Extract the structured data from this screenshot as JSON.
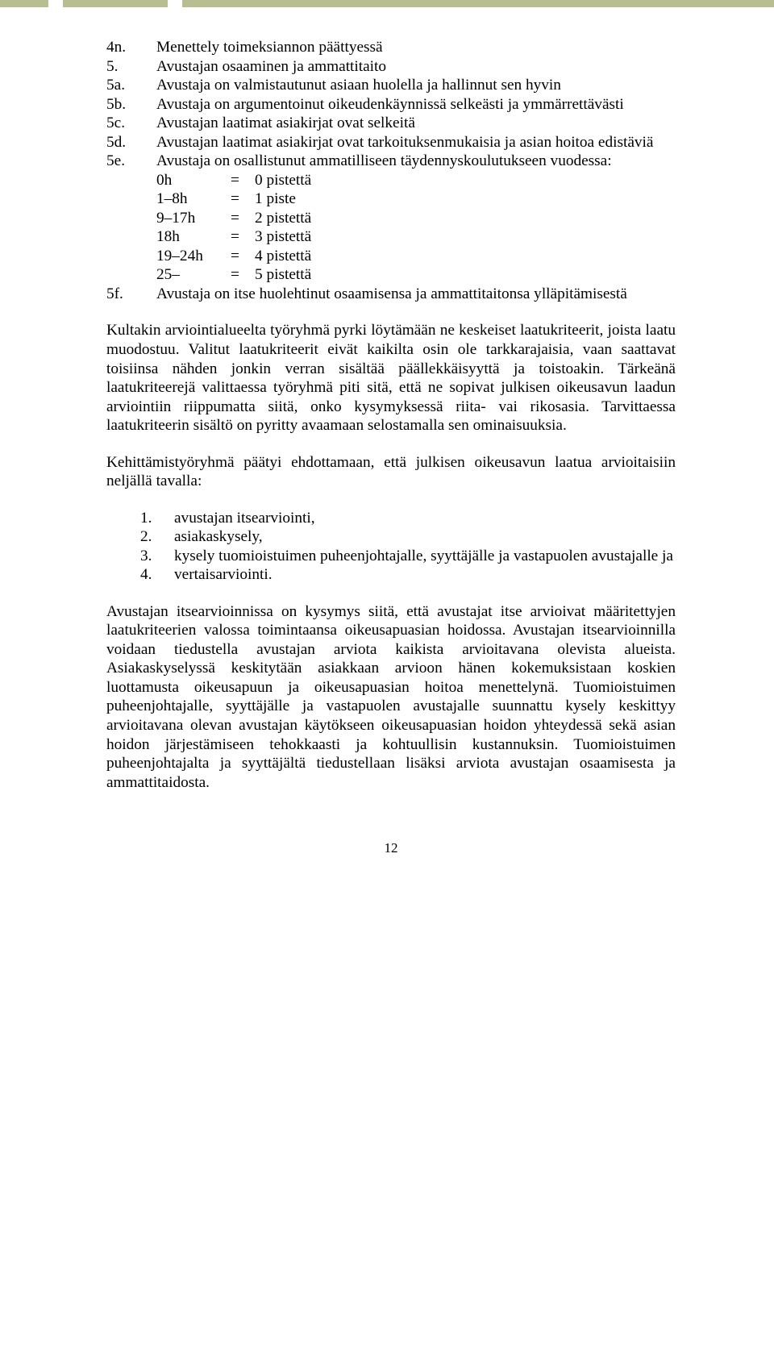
{
  "topbars": {
    "color": "#b9bd92"
  },
  "list": {
    "i0": {
      "label": "4n.",
      "text": "Menettely toimeksiannon päättyessä"
    },
    "i1": {
      "label": "5.",
      "text": "Avustajan osaaminen ja ammattitaito"
    },
    "i2": {
      "label": "5a.",
      "text": "Avustaja on valmistautunut asiaan huolella ja hallinnut sen hyvin"
    },
    "i3": {
      "label": "5b.",
      "text": "Avustaja on argumentoinut oikeudenkäynnissä selkeästi ja ymmärrettävästi"
    },
    "i4": {
      "label": "5c.",
      "text": "Avustajan laatimat asiakirjat ovat selkeitä"
    },
    "i5": {
      "label": "5d.",
      "text": "Avustajan laatimat asiakirjat ovat tarkoituksenmukaisia ja asian hoitoa edistäviä"
    },
    "i6": {
      "label": "5e.",
      "text": "Avustaja on osallistunut ammatilliseen täydennyskoulutukseen vuodessa:"
    },
    "points": {
      "r0": {
        "c1": "0h",
        "c2": "=",
        "c3": "0 pistettä"
      },
      "r1": {
        "c1": "1–8h",
        "c2": "=",
        "c3": "1 piste"
      },
      "r2": {
        "c1": "9–17h",
        "c2": "=",
        "c3": "2 pistettä"
      },
      "r3": {
        "c1": "18h",
        "c2": "=",
        "c3": "3 pistettä"
      },
      "r4": {
        "c1": "19–24h",
        "c2": "=",
        "c3": "4 pistettä"
      },
      "r5": {
        "c1": "25–",
        "c2": "=",
        "c3": "5 pistettä"
      }
    },
    "i7": {
      "label": "5f.",
      "text": "Avustaja on itse huolehtinut osaamisensa ja ammattitaitonsa ylläpitämisestä"
    }
  },
  "para1": "Kultakin arviointialueelta työryhmä pyrki löytämään ne keskeiset laatukriteerit, joista laatu muodostuu. Valitut laatukriteerit eivät kaikilta osin ole tarkkarajaisia, vaan saattavat toisiinsa nähden jonkin verran sisältää päällekkäisyyttä ja toistoakin. Tärkeänä laatukriteerejä valittaessa työryhmä piti sitä, että ne sopivat julkisen oikeusavun laadun arviointiin riippumatta siitä, onko kysymyksessä riita- vai rikosasia. Tarvittaessa laatukriteerin sisältö on pyritty avaamaan selostamalla sen ominaisuuksia.",
  "para2": "Kehittämistyöryhmä päätyi ehdottamaan, että julkisen oikeusavun laatua arvioitaisiin neljällä tavalla:",
  "numlist": {
    "n1": {
      "label": "1.",
      "text": "avustajan itsearviointi,"
    },
    "n2": {
      "label": "2.",
      "text": "asiakaskysely,"
    },
    "n3": {
      "label": "3.",
      "text": "kysely tuomioistuimen puheenjohtajalle, syyttäjälle ja vastapuolen avustajalle ja"
    },
    "n4": {
      "label": "4.",
      "text": "vertaisarviointi."
    }
  },
  "para3": "Avustajan itsearvioinnissa on kysymys siitä, että avustajat itse arvioivat määritettyjen laatukriteerien valossa toimintaansa oikeusapuasian hoidossa. Avustajan itsearvioinnilla voidaan tiedustella avustajan arviota kaikista arvioitavana olevista alueista. Asiakaskyselyssä keskitytään asiakkaan arvioon hänen kokemuksistaan koskien luottamusta oikeusapuun ja oikeusapuasian hoitoa menettelynä. Tuomioistuimen puheenjohtajalle, syyttäjälle ja vastapuolen avustajalle suunnattu kysely keskittyy arvioitavana olevan avustajan käytökseen oikeusapuasian hoidon yhteydessä sekä asian hoidon järjestämiseen tehokkaasti ja kohtuullisin kustannuksin. Tuomioistuimen puheenjohtajalta ja syyttäjältä tiedustellaan lisäksi arviota avustajan osaamisesta ja ammattitaidosta.",
  "pagenum": "12"
}
